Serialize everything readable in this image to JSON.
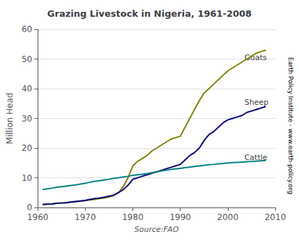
{
  "chart_data": {
    "type": "line",
    "title": "Grazing Livestock in Nigeria, 1961-2008",
    "xlabel": "Source:FAO",
    "ylabel": "Million Head",
    "x": [
      1961,
      1962,
      1963,
      1964,
      1965,
      1966,
      1967,
      1968,
      1969,
      1970,
      1971,
      1972,
      1973,
      1974,
      1975,
      1976,
      1977,
      1978,
      1979,
      1980,
      1981,
      1982,
      1983,
      1984,
      1985,
      1986,
      1987,
      1988,
      1989,
      1990,
      1991,
      1992,
      1993,
      1994,
      1995,
      1996,
      1997,
      1998,
      1999,
      2000,
      2001,
      2002,
      2003,
      2004,
      2005,
      2006,
      2007,
      2008
    ],
    "series": [
      {
        "name": "Goats",
        "color": "#808000",
        "values": [
          1.0,
          1.1,
          1.2,
          1.4,
          1.5,
          1.6,
          1.8,
          2.0,
          2.1,
          2.3,
          2.5,
          2.7,
          3.0,
          3.2,
          3.5,
          4.0,
          5.0,
          7.0,
          10.0,
          14.0,
          15.5,
          16.5,
          17.5,
          19.0,
          20.0,
          21.0,
          22.0,
          23.0,
          23.5,
          24.0,
          27.0,
          30.0,
          33.0,
          36.0,
          38.5,
          40.0,
          41.5,
          43.0,
          44.5,
          46.0,
          47.0,
          48.0,
          49.0,
          50.0,
          51.0,
          52.0,
          52.5,
          53.0
        ]
      },
      {
        "name": "Sheep",
        "color": "#000080",
        "values": [
          1.0,
          1.1,
          1.2,
          1.4,
          1.5,
          1.6,
          1.8,
          2.0,
          2.2,
          2.4,
          2.7,
          3.0,
          3.2,
          3.5,
          3.8,
          4.2,
          5.0,
          6.0,
          7.5,
          9.5,
          10.0,
          10.5,
          11.0,
          11.5,
          12.0,
          12.5,
          13.0,
          13.5,
          14.0,
          14.5,
          16.0,
          17.5,
          18.5,
          20.0,
          22.5,
          24.5,
          25.5,
          27.0,
          28.5,
          29.5,
          30.0,
          30.5,
          31.0,
          32.0,
          32.5,
          33.0,
          33.5,
          34.0
        ]
      },
      {
        "name": "Cattle",
        "color": "#008080",
        "values": [
          6.0,
          6.3,
          6.5,
          6.8,
          7.0,
          7.2,
          7.4,
          7.6,
          7.9,
          8.2,
          8.5,
          8.8,
          9.0,
          9.3,
          9.5,
          9.8,
          10.0,
          10.3,
          10.5,
          10.8,
          11.0,
          11.2,
          11.4,
          11.7,
          12.0,
          12.3,
          12.5,
          12.8,
          13.0,
          13.2,
          13.4,
          13.6,
          13.8,
          14.0,
          14.2,
          14.4,
          14.5,
          14.7,
          14.8,
          15.0,
          15.1,
          15.2,
          15.3,
          15.4,
          15.5,
          15.6,
          15.7,
          15.8
        ]
      }
    ],
    "annotations": [
      {
        "text": "Goats",
        "x": 2003.5,
        "y": 50.5
      },
      {
        "text": "Sheep",
        "x": 2003.5,
        "y": 35.5
      },
      {
        "text": "Cattle",
        "x": 2003.5,
        "y": 16.8
      },
      {
        "text": "Earth Policy Institute - www.earth-policy.org"
      }
    ],
    "xlim": [
      1960,
      2010
    ],
    "xticks": [
      1960,
      1970,
      1980,
      1990,
      2000,
      2010
    ],
    "ylim": [
      0,
      60
    ],
    "yticks": [
      0,
      10,
      20,
      30,
      40,
      50,
      60
    ],
    "grid": true
  }
}
